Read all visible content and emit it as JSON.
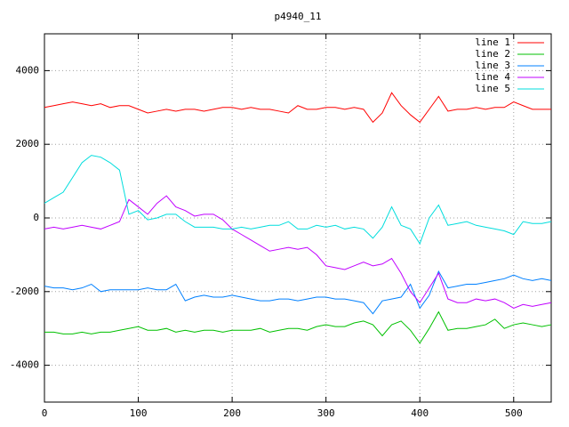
{
  "chart_data": {
    "type": "line",
    "title": "p4940_11",
    "x": [
      0,
      10,
      20,
      30,
      40,
      50,
      60,
      70,
      80,
      90,
      100,
      110,
      120,
      130,
      140,
      150,
      160,
      170,
      180,
      190,
      200,
      210,
      220,
      230,
      240,
      250,
      260,
      270,
      280,
      290,
      300,
      310,
      320,
      330,
      340,
      350,
      360,
      370,
      380,
      390,
      400,
      410,
      420,
      430,
      440,
      450,
      460,
      470,
      480,
      490,
      500,
      510,
      520,
      530,
      540
    ],
    "series": [
      {
        "name": "line 1",
        "color": "#ff0000",
        "values": [
          3000,
          3050,
          3100,
          3150,
          3100,
          3050,
          3100,
          3000,
          3050,
          3050,
          2950,
          2850,
          2900,
          2950,
          2900,
          2950,
          2950,
          2900,
          2950,
          3000,
          3000,
          2950,
          3000,
          2950,
          2950,
          2900,
          2850,
          3050,
          2950,
          2950,
          3000,
          3000,
          2950,
          3000,
          2950,
          2600,
          2850,
          3400,
          3050,
          2800,
          2600,
          2950,
          3300,
          2900,
          2950,
          2950,
          3000,
          2950,
          3000,
          3000,
          3150,
          3050,
          2950,
          2950,
          2950
        ]
      },
      {
        "name": "line 2",
        "color": "#00c000",
        "values": [
          -3100,
          -3100,
          -3150,
          -3150,
          -3100,
          -3150,
          -3100,
          -3100,
          -3050,
          -3000,
          -2950,
          -3050,
          -3050,
          -3000,
          -3100,
          -3050,
          -3100,
          -3050,
          -3050,
          -3100,
          -3050,
          -3050,
          -3050,
          -3000,
          -3100,
          -3050,
          -3000,
          -3000,
          -3050,
          -2950,
          -2900,
          -2950,
          -2950,
          -2850,
          -2800,
          -2900,
          -3200,
          -2900,
          -2800,
          -3050,
          -3400,
          -3000,
          -2550,
          -3050,
          -3000,
          -3000,
          -2950,
          -2900,
          -2750,
          -3000,
          -2900,
          -2850,
          -2900,
          -2950,
          -2900
        ]
      },
      {
        "name": "line 3",
        "color": "#0080ff",
        "values": [
          -1850,
          -1900,
          -1900,
          -1950,
          -1900,
          -1800,
          -2000,
          -1950,
          -1950,
          -1950,
          -1950,
          -1900,
          -1950,
          -1950,
          -1800,
          -2250,
          -2150,
          -2100,
          -2150,
          -2150,
          -2100,
          -2150,
          -2200,
          -2250,
          -2250,
          -2200,
          -2200,
          -2250,
          -2200,
          -2150,
          -2150,
          -2200,
          -2200,
          -2250,
          -2300,
          -2600,
          -2250,
          -2200,
          -2150,
          -1800,
          -2450,
          -2100,
          -1450,
          -1900,
          -1850,
          -1800,
          -1800,
          -1750,
          -1700,
          -1650,
          -1550,
          -1650,
          -1700,
          -1650,
          -1700
        ]
      },
      {
        "name": "line 4",
        "color": "#c000ff",
        "values": [
          -300,
          -250,
          -300,
          -250,
          -200,
          -250,
          -300,
          -200,
          -100,
          500,
          300,
          100,
          400,
          600,
          300,
          200,
          50,
          100,
          100,
          -50,
          -300,
          -450,
          -600,
          -750,
          -900,
          -850,
          -800,
          -850,
          -800,
          -1000,
          -1300,
          -1350,
          -1400,
          -1300,
          -1200,
          -1300,
          -1250,
          -1100,
          -1500,
          -2000,
          -2300,
          -1900,
          -1500,
          -2200,
          -2300,
          -2300,
          -2200,
          -2250,
          -2200,
          -2300,
          -2450,
          -2350,
          -2400,
          -2350,
          -2300
        ]
      },
      {
        "name": "line 5",
        "color": "#00dddd",
        "values": [
          400,
          550,
          700,
          1100,
          1500,
          1700,
          1650,
          1500,
          1300,
          100,
          200,
          -50,
          0,
          100,
          100,
          -100,
          -250,
          -250,
          -250,
          -300,
          -300,
          -250,
          -300,
          -250,
          -200,
          -200,
          -100,
          -300,
          -300,
          -200,
          -250,
          -200,
          -300,
          -250,
          -300,
          -550,
          -250,
          300,
          -200,
          -300,
          -700,
          0,
          350,
          -200,
          -150,
          -100,
          -200,
          -250,
          -300,
          -350,
          -450,
          -100,
          -150,
          -150,
          -100
        ]
      }
    ],
    "xlim": [
      0,
      540
    ],
    "xticks": [
      0,
      100,
      200,
      300,
      400,
      500
    ],
    "ylim": [
      -5000,
      5000
    ],
    "yticks": [
      -4000,
      -2000,
      0,
      2000,
      4000
    ],
    "grid": true,
    "legend": "top-right"
  }
}
